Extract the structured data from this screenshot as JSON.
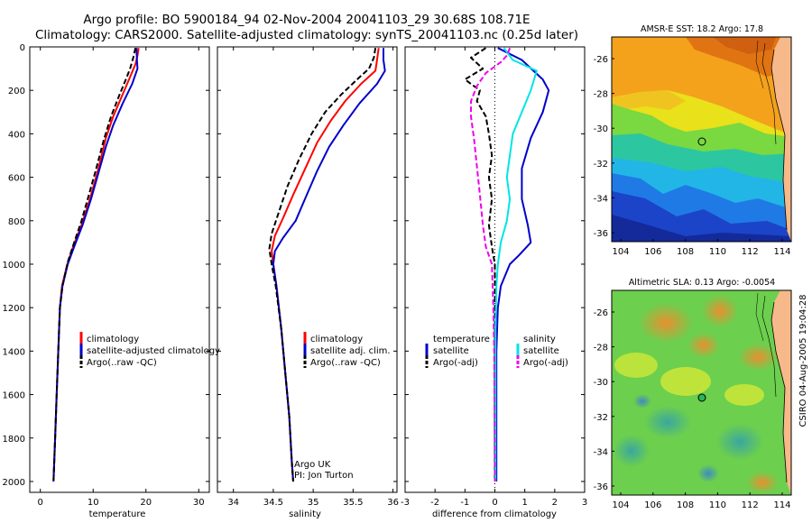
{
  "header": {
    "line1": "Argo profile: BO 5900184_94 02-Nov-2004 20041103_29 30.68S 108.71E",
    "line2": "Climatology: CARS2000. Satellite-adjusted climatology: synTS_20041103.nc (0.25d later)"
  },
  "chart_data": [
    {
      "type": "line",
      "name": "temperature-profile",
      "xlabel": "temperature",
      "xlim": [
        -2,
        32
      ],
      "xticks": [
        0,
        10,
        20,
        30
      ],
      "ylim": [
        0,
        2050
      ],
      "yticks": [
        0,
        200,
        400,
        600,
        800,
        1000,
        1200,
        1400,
        1600,
        1800,
        2000
      ],
      "y_reversed": true,
      "legend": [
        "climatology",
        "satellite-adjusted climatology",
        "Argo(..raw -QC)"
      ],
      "series": [
        {
          "name": "climatology",
          "color": "#ff0000",
          "style": "solid",
          "points": [
            [
              18.6,
              5
            ],
            [
              18.4,
              40
            ],
            [
              18.0,
              80
            ],
            [
              16.8,
              150
            ],
            [
              15.4,
              230
            ],
            [
              13.8,
              320
            ],
            [
              12.4,
              420
            ],
            [
              11.0,
              560
            ],
            [
              9.4,
              700
            ],
            [
              7.8,
              820
            ],
            [
              6.2,
              920
            ],
            [
              5.1,
              1000
            ],
            [
              4.1,
              1100
            ],
            [
              3.7,
              1200
            ],
            [
              3.4,
              1400
            ],
            [
              3.1,
              1600
            ],
            [
              2.8,
              1800
            ],
            [
              2.5,
              2000
            ]
          ]
        },
        {
          "name": "satellite-adjusted climatology",
          "color": "#0000cc",
          "style": "solid",
          "points": [
            [
              18.2,
              5
            ],
            [
              18.3,
              60
            ],
            [
              18.4,
              100
            ],
            [
              17.4,
              170
            ],
            [
              15.6,
              260
            ],
            [
              13.8,
              360
            ],
            [
              12.4,
              460
            ],
            [
              11.0,
              580
            ],
            [
              9.6,
              700
            ],
            [
              8.0,
              820
            ],
            [
              6.4,
              920
            ],
            [
              5.2,
              1000
            ],
            [
              4.2,
              1100
            ],
            [
              3.7,
              1200
            ],
            [
              3.4,
              1400
            ],
            [
              3.1,
              1600
            ],
            [
              2.8,
              1800
            ],
            [
              2.5,
              2000
            ]
          ]
        },
        {
          "name": "Argo(..raw -QC)",
          "color": "#000000",
          "style": "dashed",
          "points": [
            [
              18.0,
              5
            ],
            [
              17.6,
              50
            ],
            [
              17.0,
              100
            ],
            [
              16.2,
              150
            ],
            [
              15.0,
              220
            ],
            [
              13.4,
              320
            ],
            [
              12.0,
              430
            ],
            [
              10.6,
              560
            ],
            [
              9.2,
              680
            ],
            [
              7.8,
              800
            ],
            [
              6.4,
              900
            ],
            [
              5.2,
              990
            ],
            [
              4.2,
              1100
            ],
            [
              3.7,
              1200
            ],
            [
              3.4,
              1400
            ],
            [
              3.1,
              1600
            ],
            [
              2.8,
              1800
            ],
            [
              2.5,
              2000
            ]
          ]
        }
      ],
      "annotations": []
    },
    {
      "type": "line",
      "name": "salinity-profile",
      "xlabel": "salinity",
      "xlim": [
        33.8,
        36.05
      ],
      "xticks": [
        34,
        34.5,
        35,
        35.5,
        36
      ],
      "xticklabels": [
        "34",
        "34.5",
        "35",
        "35.5",
        "36"
      ],
      "ylim": [
        0,
        2050
      ],
      "y_reversed": true,
      "legend": [
        "climatology",
        "satellite adj. clim.",
        "Argo(..raw -QC)"
      ],
      "series": [
        {
          "name": "climatology",
          "color": "#ff0000",
          "style": "solid",
          "points": [
            [
              35.82,
              5
            ],
            [
              35.8,
              60
            ],
            [
              35.78,
              110
            ],
            [
              35.6,
              170
            ],
            [
              35.4,
              250
            ],
            [
              35.22,
              340
            ],
            [
              35.05,
              440
            ],
            [
              34.9,
              560
            ],
            [
              34.75,
              680
            ],
            [
              34.62,
              790
            ],
            [
              34.52,
              870
            ],
            [
              34.48,
              940
            ],
            [
              34.5,
              1000
            ],
            [
              34.54,
              1100
            ],
            [
              34.6,
              1300
            ],
            [
              34.65,
              1500
            ],
            [
              34.7,
              1700
            ],
            [
              34.73,
              1900
            ],
            [
              34.75,
              2000
            ]
          ]
        },
        {
          "name": "satellite adj. clim.",
          "color": "#0000cc",
          "style": "solid",
          "points": [
            [
              35.88,
              5
            ],
            [
              35.88,
              60
            ],
            [
              35.9,
              110
            ],
            [
              35.8,
              170
            ],
            [
              35.58,
              260
            ],
            [
              35.38,
              360
            ],
            [
              35.2,
              460
            ],
            [
              35.05,
              570
            ],
            [
              34.92,
              680
            ],
            [
              34.78,
              800
            ],
            [
              34.62,
              880
            ],
            [
              34.52,
              940
            ],
            [
              34.5,
              1000
            ],
            [
              34.54,
              1100
            ],
            [
              34.6,
              1300
            ],
            [
              34.65,
              1500
            ],
            [
              34.7,
              1700
            ],
            [
              34.73,
              1900
            ],
            [
              34.75,
              2000
            ]
          ]
        },
        {
          "name": "Argo(..raw -QC)",
          "color": "#000000",
          "style": "dashed",
          "points": [
            [
              35.78,
              5
            ],
            [
              35.76,
              50
            ],
            [
              35.7,
              100
            ],
            [
              35.55,
              150
            ],
            [
              35.35,
              220
            ],
            [
              35.15,
              300
            ],
            [
              34.98,
              400
            ],
            [
              34.82,
              520
            ],
            [
              34.68,
              640
            ],
            [
              34.57,
              760
            ],
            [
              34.48,
              860
            ],
            [
              34.45,
              930
            ],
            [
              34.48,
              1000
            ],
            [
              34.53,
              1100
            ],
            [
              34.6,
              1300
            ],
            [
              34.65,
              1500
            ],
            [
              34.7,
              1700
            ],
            [
              34.73,
              1900
            ],
            [
              34.75,
              2000
            ]
          ]
        }
      ],
      "annotations": [
        "Argo UK",
        "PI: Jon Turton"
      ]
    },
    {
      "type": "line",
      "name": "difference-profile",
      "xlabel": "difference from climatology",
      "xlim": [
        -3,
        3
      ],
      "xticks": [
        -3,
        -2,
        -1,
        0,
        1,
        2,
        3
      ],
      "ylim": [
        0,
        2050
      ],
      "y_reversed": true,
      "legend_left": [
        "temperature",
        "satellite",
        "Argo(-adj)"
      ],
      "legend_right": [
        "salinity",
        "satellite",
        "Argo(-adj)"
      ],
      "series": [
        {
          "name": "temperature satellite",
          "color": "#0000cc",
          "style": "solid",
          "points": [
            [
              0.1,
              5
            ],
            [
              0.9,
              60
            ],
            [
              1.6,
              150
            ],
            [
              1.8,
              200
            ],
            [
              1.6,
              300
            ],
            [
              1.2,
              420
            ],
            [
              0.9,
              560
            ],
            [
              0.9,
              700
            ],
            [
              1.1,
              820
            ],
            [
              1.2,
              900
            ],
            [
              0.8,
              960
            ],
            [
              0.5,
              1000
            ],
            [
              0.2,
              1100
            ],
            [
              0.1,
              1200
            ],
            [
              0.05,
              1400
            ],
            [
              0.05,
              2000
            ]
          ]
        },
        {
          "name": "temperature Argo(-adj)",
          "color": "#000000",
          "style": "dashed",
          "points": [
            [
              -0.3,
              5
            ],
            [
              -0.8,
              50
            ],
            [
              -0.4,
              100
            ],
            [
              -1.0,
              150
            ],
            [
              -0.5,
              200
            ],
            [
              -0.6,
              250
            ],
            [
              -0.3,
              320
            ],
            [
              -0.2,
              400
            ],
            [
              -0.1,
              500
            ],
            [
              -0.2,
              600
            ],
            [
              -0.1,
              700
            ],
            [
              -0.2,
              820
            ],
            [
              -0.1,
              920
            ],
            [
              0.0,
              1000
            ],
            [
              0.0,
              1200
            ],
            [
              0.0,
              1400
            ],
            [
              0.0,
              1600
            ],
            [
              0.0,
              2000
            ]
          ]
        },
        {
          "name": "salinity satellite",
          "color": "#00e5e5",
          "style": "solid",
          "points": [
            [
              0.3,
              5
            ],
            [
              0.6,
              60
            ],
            [
              1.4,
              110
            ],
            [
              1.2,
              200
            ],
            [
              0.9,
              300
            ],
            [
              0.6,
              400
            ],
            [
              0.5,
              500
            ],
            [
              0.4,
              600
            ],
            [
              0.5,
              700
            ],
            [
              0.4,
              800
            ],
            [
              0.2,
              900
            ],
            [
              0.1,
              1000
            ],
            [
              0.05,
              1100
            ],
            [
              0.02,
              1300
            ],
            [
              0.02,
              2000
            ]
          ]
        },
        {
          "name": "salinity Argo(-adj)",
          "color": "#ee00ee",
          "style": "dashed",
          "points": [
            [
              0.5,
              5
            ],
            [
              0.4,
              40
            ],
            [
              0.2,
              70
            ],
            [
              -0.3,
              120
            ],
            [
              -0.6,
              180
            ],
            [
              -0.8,
              250
            ],
            [
              -0.8,
              320
            ],
            [
              -0.7,
              420
            ],
            [
              -0.6,
              550
            ],
            [
              -0.5,
              680
            ],
            [
              -0.4,
              820
            ],
            [
              -0.3,
              920
            ],
            [
              -0.1,
              1000
            ],
            [
              -0.05,
              1200
            ],
            [
              -0.02,
              1400
            ],
            [
              0.0,
              2000
            ]
          ]
        }
      ],
      "annotations": []
    }
  ],
  "maps": [
    {
      "title": "AMSR-E SST: 18.2 Argo: 17.8",
      "xticks": [
        "104",
        "106",
        "108",
        "110",
        "112",
        "114"
      ],
      "yticks": [
        "-26",
        "-28",
        "-30",
        "-32",
        "-34",
        "-36"
      ]
    },
    {
      "title": "Altimetric SLA: 0.13 Argo: -0.0054",
      "xticks": [
        "104",
        "106",
        "108",
        "110",
        "112",
        "114"
      ],
      "yticks": [
        "-26",
        "-28",
        "-30",
        "-32",
        "-34",
        "-36"
      ]
    }
  ],
  "footer": "CSIRO 04-Aug-2005 19:04:28",
  "colors": {
    "climatology": "#ff0000",
    "satellite": "#0000cc",
    "argo": "#000000",
    "salinity_satellite": "#00e5e5",
    "salinity_argo": "#ee00ee"
  }
}
